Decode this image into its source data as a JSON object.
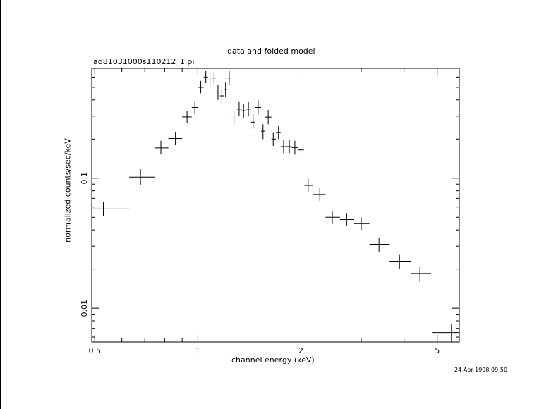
{
  "chart_data": {
    "type": "scatter",
    "title": "data and folded model",
    "subtitle": "ad81031000s110212_1.pi",
    "xlabel": "channel energy (keV)",
    "ylabel": "normalized counts/sec/keV",
    "xscale": "log",
    "yscale": "log",
    "xlim": [
      0.49,
      5.8
    ],
    "ylim": [
      0.0055,
      0.7
    ],
    "x_ticks": [
      {
        "value": 0.5,
        "label": "0.5"
      },
      {
        "value": 1,
        "label": "1"
      },
      {
        "value": 2,
        "label": "2"
      },
      {
        "value": 5,
        "label": "5"
      }
    ],
    "y_ticks": [
      {
        "value": 0.1,
        "label": "0.1"
      },
      {
        "value": 0.01,
        "label": "0.01"
      }
    ],
    "grid": false,
    "series": [
      {
        "points": [
          {
            "x": 0.53,
            "xerr": [
              0.49,
              0.63
            ],
            "y": 0.058,
            "yerr": [
              0.051,
              0.066
            ]
          },
          {
            "x": 0.68,
            "xerr": [
              0.63,
              0.75
            ],
            "y": 0.102,
            "yerr": [
              0.089,
              0.118
            ]
          },
          {
            "x": 0.78,
            "xerr": [
              0.75,
              0.82
            ],
            "y": 0.171,
            "yerr": [
              0.153,
              0.194
            ]
          },
          {
            "x": 0.86,
            "xerr": [
              0.82,
              0.9
            ],
            "y": 0.202,
            "yerr": [
              0.18,
              0.227
            ]
          },
          {
            "x": 0.93,
            "xerr": [
              0.9,
              0.96
            ],
            "y": 0.296,
            "yerr": [
              0.264,
              0.33
            ]
          },
          {
            "x": 0.98,
            "xerr": [
              0.96,
              1.0
            ],
            "y": 0.35,
            "yerr": [
              0.315,
              0.39
            ]
          },
          {
            "x": 1.02,
            "xerr": [
              1.0,
              1.04
            ],
            "y": 0.5,
            "yerr": [
              0.45,
              0.56
            ]
          },
          {
            "x": 1.055,
            "xerr": [
              1.04,
              1.07
            ],
            "y": 0.6,
            "yerr": [
              0.54,
              0.67
            ]
          },
          {
            "x": 1.085,
            "xerr": [
              1.07,
              1.1
            ],
            "y": 0.57,
            "yerr": [
              0.51,
              0.64
            ]
          },
          {
            "x": 1.115,
            "xerr": [
              1.1,
              1.13
            ],
            "y": 0.59,
            "yerr": [
              0.53,
              0.66
            ]
          },
          {
            "x": 1.145,
            "xerr": [
              1.13,
              1.16
            ],
            "y": 0.46,
            "yerr": [
              0.4,
              0.52
            ]
          },
          {
            "x": 1.175,
            "xerr": [
              1.16,
              1.19
            ],
            "y": 0.43,
            "yerr": [
              0.37,
              0.49
            ]
          },
          {
            "x": 1.205,
            "xerr": [
              1.19,
              1.22
            ],
            "y": 0.48,
            "yerr": [
              0.42,
              0.55
            ]
          },
          {
            "x": 1.235,
            "xerr": [
              1.22,
              1.25
            ],
            "y": 0.59,
            "yerr": [
              0.52,
              0.67
            ]
          },
          {
            "x": 1.275,
            "xerr": [
              1.25,
              1.3
            ],
            "y": 0.29,
            "yerr": [
              0.255,
              0.33
            ]
          },
          {
            "x": 1.32,
            "xerr": [
              1.3,
              1.34
            ],
            "y": 0.34,
            "yerr": [
              0.3,
              0.39
            ]
          },
          {
            "x": 1.36,
            "xerr": [
              1.34,
              1.38
            ],
            "y": 0.33,
            "yerr": [
              0.29,
              0.375
            ]
          },
          {
            "x": 1.405,
            "xerr": [
              1.38,
              1.43
            ],
            "y": 0.34,
            "yerr": [
              0.3,
              0.385
            ]
          },
          {
            "x": 1.45,
            "xerr": [
              1.43,
              1.47
            ],
            "y": 0.27,
            "yerr": [
              0.24,
              0.31
            ]
          },
          {
            "x": 1.5,
            "xerr": [
              1.47,
              1.53
            ],
            "y": 0.35,
            "yerr": [
              0.31,
              0.4
            ]
          },
          {
            "x": 1.55,
            "xerr": [
              1.53,
              1.57
            ],
            "y": 0.23,
            "yerr": [
              0.2,
              0.26
            ]
          },
          {
            "x": 1.605,
            "xerr": [
              1.57,
              1.64
            ],
            "y": 0.295,
            "yerr": [
              0.26,
              0.335
            ]
          },
          {
            "x": 1.66,
            "xerr": [
              1.64,
              1.69
            ],
            "y": 0.2,
            "yerr": [
              0.177,
              0.226
            ]
          },
          {
            "x": 1.72,
            "xerr": [
              1.69,
              1.75
            ],
            "y": 0.225,
            "yerr": [
              0.2,
              0.255
            ]
          },
          {
            "x": 1.78,
            "xerr": [
              1.75,
              1.82
            ],
            "y": 0.175,
            "yerr": [
              0.156,
              0.197
            ]
          },
          {
            "x": 1.85,
            "xerr": [
              1.82,
              1.88
            ],
            "y": 0.175,
            "yerr": [
              0.156,
              0.197
            ]
          },
          {
            "x": 1.92,
            "xerr": [
              1.88,
              1.96
            ],
            "y": 0.172,
            "yerr": [
              0.152,
              0.194
            ]
          },
          {
            "x": 2.0,
            "xerr": [
              1.96,
              2.04
            ],
            "y": 0.165,
            "yerr": [
              0.145,
              0.187
            ]
          },
          {
            "x": 2.1,
            "xerr": [
              2.05,
              2.17
            ],
            "y": 0.088,
            "yerr": [
              0.079,
              0.099
            ]
          },
          {
            "x": 2.27,
            "xerr": [
              2.17,
              2.36
            ],
            "y": 0.075,
            "yerr": [
              0.067,
              0.084
            ]
          },
          {
            "x": 2.47,
            "xerr": [
              2.36,
              2.6
            ],
            "y": 0.05,
            "yerr": [
              0.045,
              0.056
            ]
          },
          {
            "x": 2.72,
            "xerr": [
              2.6,
              2.86
            ],
            "y": 0.048,
            "yerr": [
              0.043,
              0.054
            ]
          },
          {
            "x": 3.0,
            "xerr": [
              2.86,
              3.17
            ],
            "y": 0.045,
            "yerr": [
              0.04,
              0.05
            ]
          },
          {
            "x": 3.38,
            "xerr": [
              3.17,
              3.63
            ],
            "y": 0.031,
            "yerr": [
              0.027,
              0.035
            ]
          },
          {
            "x": 3.88,
            "xerr": [
              3.63,
              4.18
            ],
            "y": 0.023,
            "yerr": [
              0.02,
              0.026
            ]
          },
          {
            "x": 4.45,
            "xerr": [
              4.18,
              4.8
            ],
            "y": 0.0185,
            "yerr": [
              0.016,
              0.021
            ]
          },
          {
            "x": 5.5,
            "xerr": [
              4.85,
              5.8
            ],
            "y": 0.0065,
            "yerr": [
              0.0055,
              0.0075
            ]
          }
        ]
      }
    ]
  },
  "timestamp": "24-Apr-1998 09:50"
}
